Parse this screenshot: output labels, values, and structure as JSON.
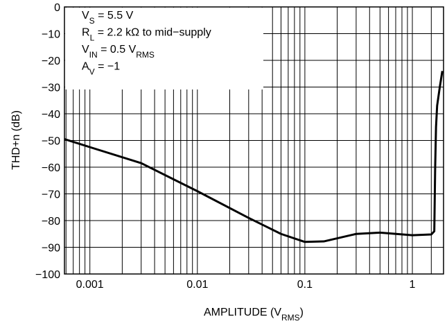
{
  "chart_data": {
    "type": "line",
    "y_label": "THD+n (dB)",
    "x_label": [
      {
        "text": "AMPLITUDE (V"
      },
      {
        "text": "RMS",
        "sub": true
      },
      {
        "text": ")"
      }
    ],
    "annotations": [
      [
        {
          "text": "V"
        },
        {
          "text": "S",
          "sub": true
        },
        {
          "text": " = 5.5 V"
        }
      ],
      [
        {
          "text": "R"
        },
        {
          "text": "L",
          "sub": true
        },
        {
          "text": " = 2.2 kΩ to mid−supply"
        }
      ],
      [
        {
          "text": "V"
        },
        {
          "text": "IN",
          "sub": true
        },
        {
          "text": " = 0.5 V"
        },
        {
          "text": "RMS",
          "sub": true
        }
      ],
      [
        {
          "text": "A"
        },
        {
          "text": "V",
          "sub": true
        },
        {
          "text": " = −1"
        }
      ]
    ],
    "log_x": true,
    "grid": true,
    "xlim": [
      0.00058,
      1.95
    ],
    "ylim": [
      -100,
      0
    ],
    "xticks": [
      0.001,
      0.01,
      0.1,
      1
    ],
    "xminorticks": [
      0.0006,
      0.0007,
      0.0008,
      0.0009,
      0.002,
      0.003,
      0.004,
      0.005,
      0.006,
      0.007,
      0.008,
      0.009,
      0.02,
      0.03,
      0.04,
      0.05,
      0.06,
      0.07,
      0.08,
      0.09,
      0.2,
      0.3,
      0.4,
      0.5,
      0.6,
      0.7,
      0.8,
      0.9,
      1.5
    ],
    "yticks": [
      0,
      {
        "value": -10,
        "label": "−10"
      },
      {
        "value": -20,
        "label": "−20"
      },
      {
        "value": -30,
        "label": "−30"
      },
      {
        "value": -40,
        "label": "−40"
      },
      {
        "value": -50,
        "label": "−50"
      },
      {
        "value": -60,
        "label": "−60"
      },
      {
        "value": -70,
        "label": "−70"
      },
      {
        "value": -80,
        "label": "−80"
      },
      {
        "value": -90,
        "label": "−90"
      },
      {
        "value": -100,
        "label": "−100"
      }
    ],
    "x": [
      0.00058,
      0.001,
      0.003,
      0.01,
      0.03,
      0.06,
      0.1,
      0.15,
      0.3,
      0.5,
      1,
      1.5,
      1.6,
      1.63,
      1.66,
      1.7,
      1.8,
      1.9
    ],
    "series": [
      {
        "color": "#000000",
        "values": [
          -49.5,
          -52.5,
          -58.5,
          -69,
          -79,
          -85,
          -88,
          -87.8,
          -85,
          -84.5,
          -85.5,
          -85.2,
          -84,
          -60,
          -45,
          -37,
          -30,
          -24
        ]
      }
    ]
  }
}
